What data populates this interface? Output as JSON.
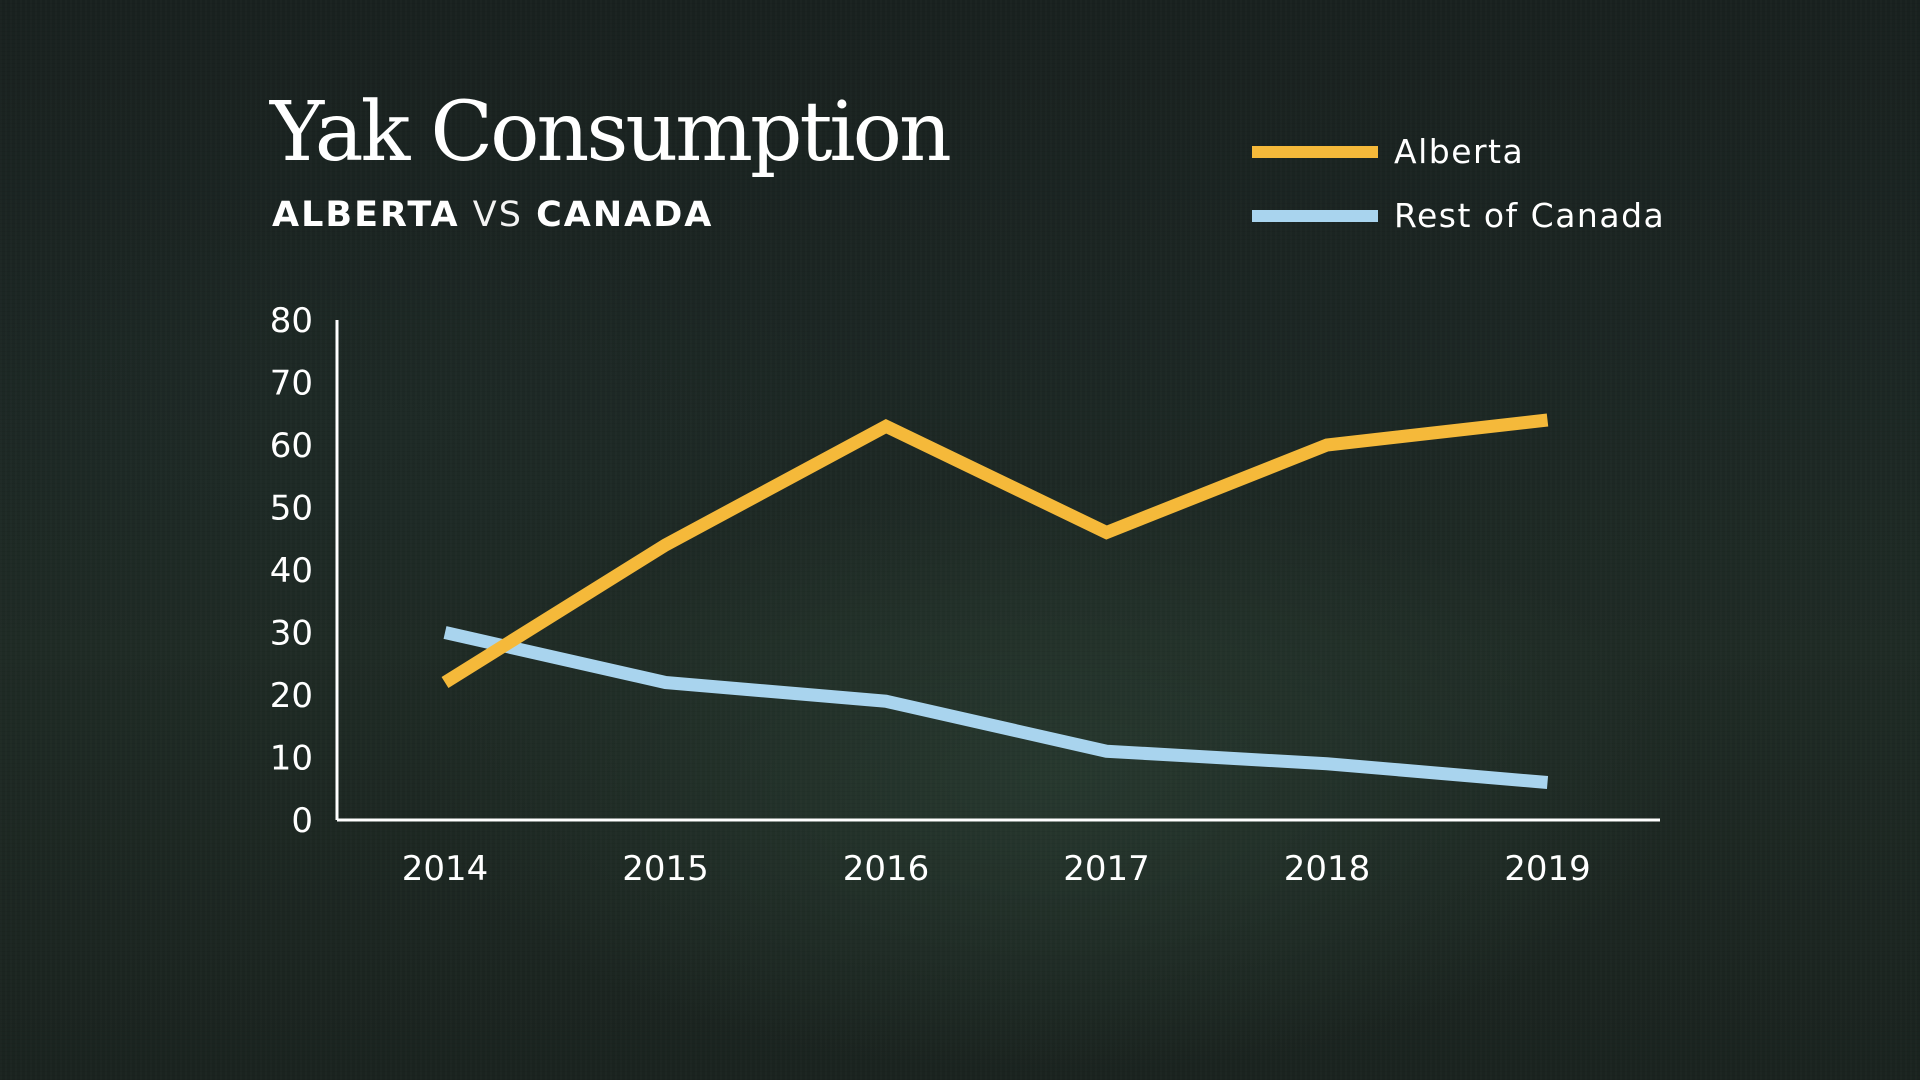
{
  "title": "Yak Consumption",
  "subtitle": {
    "part1": "ALBERTA",
    "part2": "VS",
    "part3": "CANADA"
  },
  "colors": {
    "alberta": "#f5b93a",
    "rest_of_canada": "#a9d4ee",
    "axis": "#ffffff"
  },
  "chart_data": {
    "type": "line",
    "x": [
      "2014",
      "2015",
      "2016",
      "2017",
      "2018",
      "2019"
    ],
    "series": [
      {
        "name": "Alberta",
        "values": [
          22,
          44,
          63,
          46,
          60,
          64
        ]
      },
      {
        "name": "Rest of Canada",
        "values": [
          30,
          22,
          19,
          11,
          9,
          6
        ]
      }
    ],
    "yticks": [
      "0",
      "10",
      "20",
      "30",
      "40",
      "50",
      "60",
      "70",
      "80"
    ],
    "ylim": [
      0,
      80
    ],
    "legend_position": "top-right",
    "grid": false
  }
}
